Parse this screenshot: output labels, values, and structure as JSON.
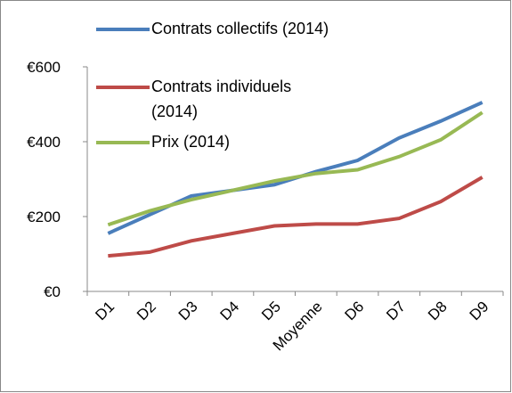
{
  "chart_data": {
    "type": "line",
    "categories": [
      "D1",
      "D2",
      "D3",
      "D4",
      "D5",
      "Moyenne",
      "D6",
      "D7",
      "D8",
      "D9"
    ],
    "series": [
      {
        "name": "Contrats collectifs (2014)",
        "color": "#4a7ebb",
        "values": [
          155,
          205,
          255,
          270,
          285,
          320,
          350,
          410,
          455,
          505
        ]
      },
      {
        "name": "Contrats individuels (2014)",
        "color": "#be4b48",
        "values": [
          95,
          105,
          135,
          155,
          175,
          180,
          180,
          195,
          240,
          305
        ]
      },
      {
        "name": "Prix (2014)",
        "color": "#98b954",
        "values": [
          178,
          215,
          245,
          270,
          295,
          315,
          325,
          360,
          405,
          478
        ]
      }
    ],
    "ylim": [
      0,
      600
    ],
    "yticks": [
      {
        "value": 0,
        "label": "€0"
      },
      {
        "value": 200,
        "label": "€200"
      },
      {
        "value": 400,
        "label": "€400"
      },
      {
        "value": 600,
        "label": "€600"
      }
    ],
    "legend": "top-left"
  }
}
